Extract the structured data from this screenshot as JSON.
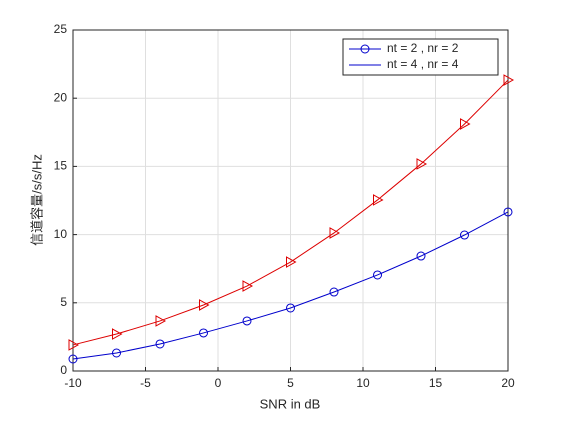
{
  "chart_data": {
    "type": "line",
    "xlabel": "SNR in dB",
    "ylabel": "信道容量/s/s/Hz",
    "x": [
      -10,
      -7,
      -4,
      -1,
      2,
      5,
      8,
      11,
      14,
      17,
      20
    ],
    "series": [
      {
        "name": "nt = 2 , nr = 2",
        "color": "#0000cc",
        "legend_color": "#0000cc",
        "marker": "circle",
        "values": [
          0.88,
          1.32,
          1.98,
          2.79,
          3.67,
          4.62,
          5.79,
          7.04,
          8.43,
          9.97,
          11.66
        ]
      },
      {
        "name": "nt = 4 , nr = 4",
        "color": "#dd0000",
        "legend_color": "#0000cc",
        "marker": "triangle-right",
        "values": [
          1.91,
          2.71,
          3.67,
          4.84,
          6.23,
          7.99,
          10.12,
          12.54,
          15.18,
          18.11,
          21.33
        ]
      }
    ],
    "xlim": [
      -10,
      20
    ],
    "xticks": [
      -10,
      -5,
      0,
      5,
      10,
      15,
      20
    ],
    "ylim": [
      0,
      25
    ],
    "yticks": [
      0,
      5,
      10,
      15,
      20,
      25
    ],
    "grid": true,
    "legend": "northeast"
  }
}
